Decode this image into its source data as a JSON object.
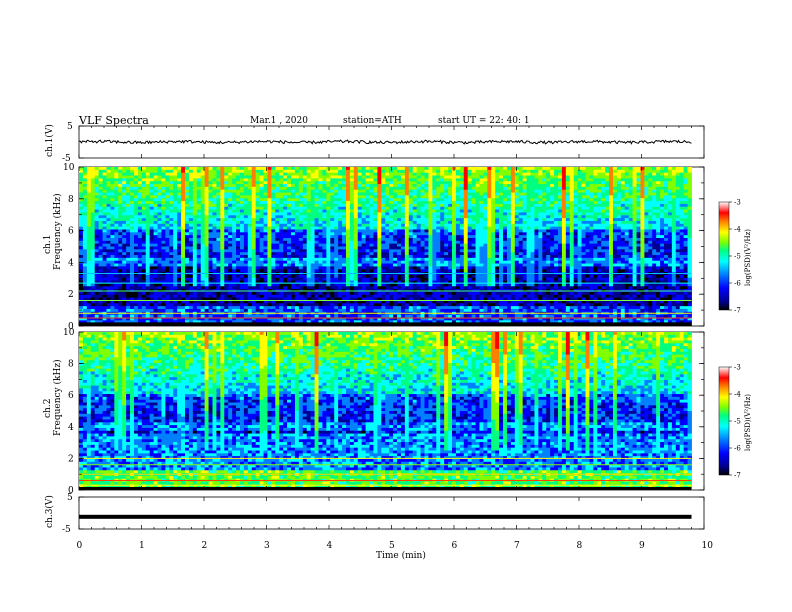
{
  "header": {
    "title": "VLF  Spectra",
    "date": "Mar.1  , 2020",
    "station": "station=ATH",
    "start_ut": "start  UT  =    22: 40: 1"
  },
  "chart_data": [
    {
      "type": "line",
      "panel": "ch1-waveform",
      "ylabel": "ch.1(V)",
      "ylim": [
        -5,
        5
      ],
      "yticks": [
        "5",
        "-5"
      ],
      "xlim": [
        0,
        10
      ],
      "series": [
        {
          "values_approx": "noisy trace near 0 V, amplitude about ±0.5 V",
          "level": 0.0
        }
      ]
    },
    {
      "type": "heatmap",
      "panel": "ch1-spectrogram",
      "ylabel_top": "ch.1",
      "ylabel": "Frequency  (kHz)",
      "ylim": [
        0,
        10
      ],
      "yticks": [
        "0",
        "2",
        "4",
        "6",
        "8",
        "10"
      ],
      "xlim": [
        0,
        9.8
      ],
      "colorbar": {
        "label": "log(PSD)(V²/Hz)",
        "range": [
          -7,
          -3
        ],
        "ticks": [
          "-3",
          "-4",
          "-5",
          "-6",
          "-7"
        ]
      }
    },
    {
      "type": "heatmap",
      "panel": "ch2-spectrogram",
      "ylabel_top": "ch.2",
      "ylabel": "Frequency  (kHz)",
      "ylim": [
        0,
        10
      ],
      "yticks": [
        "0",
        "2",
        "4",
        "6",
        "8",
        "10"
      ],
      "xlim": [
        0,
        9.8
      ],
      "colorbar": {
        "label": "log(PSD)(V²/Hz)",
        "range": [
          -7,
          -3
        ],
        "ticks": [
          "-3",
          "-4",
          "-5",
          "-6",
          "-7"
        ]
      }
    },
    {
      "type": "line",
      "panel": "ch3-waveform",
      "ylabel": "ch.3(V)",
      "ylim": [
        -5,
        5
      ],
      "yticks": [
        "5",
        "-5"
      ],
      "xlim": [
        0,
        10
      ],
      "series": [
        {
          "values_approx": "flat trace",
          "level": -1.2
        }
      ]
    }
  ],
  "xaxis": {
    "label": "Time  (min)",
    "ticks": [
      "0",
      "1",
      "2",
      "3",
      "4",
      "5",
      "6",
      "7",
      "8",
      "9",
      "10"
    ],
    "range": [
      0,
      10
    ]
  },
  "colors": {
    "background_dark": "#000066",
    "colormap": [
      "#000000",
      "#00008f",
      "#0000ff",
      "#0080ff",
      "#00ffff",
      "#00ff80",
      "#80ff00",
      "#ffff00",
      "#ff8000",
      "#ff0000",
      "#ffffff"
    ]
  }
}
